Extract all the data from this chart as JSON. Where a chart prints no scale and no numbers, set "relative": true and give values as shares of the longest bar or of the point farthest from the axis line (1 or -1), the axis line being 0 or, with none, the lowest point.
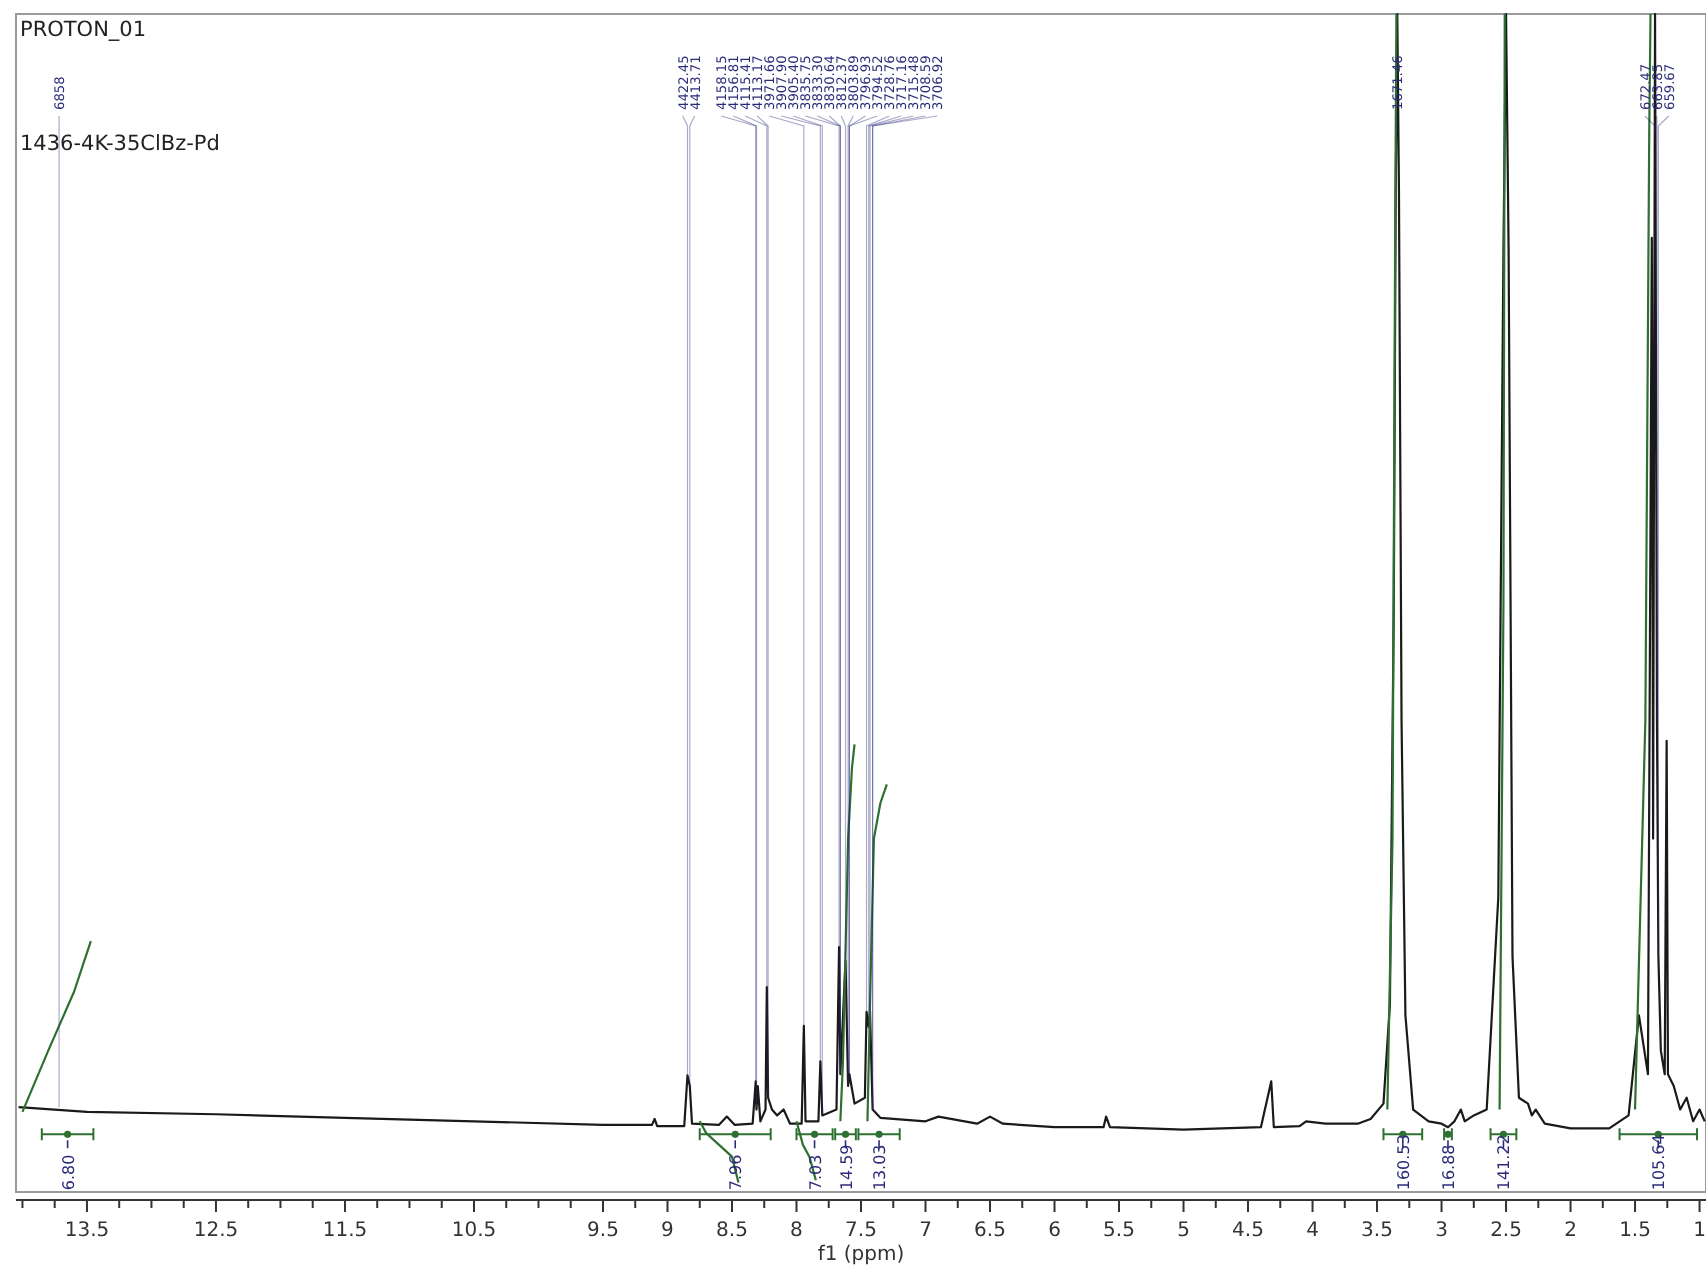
{
  "chart_data": {
    "type": "line",
    "title": "PROTON_01",
    "subtitle": "1436-4K-35ClBz-Pd",
    "xlabel": "f1 (ppm)",
    "relative": true,
    "legend": false,
    "grid": false,
    "xlim": [
      14.05,
      0.95
    ],
    "xticks": [
      {
        "value": 14.0,
        "label": null
      },
      {
        "value": 13.75,
        "label": null
      },
      13.5,
      {
        "value": 13.25,
        "label": null
      },
      {
        "value": 13.0,
        "label": null
      },
      {
        "value": 12.75,
        "label": null
      },
      12.5,
      {
        "value": 12.25,
        "label": null
      },
      {
        "value": 12.0,
        "label": null
      },
      {
        "value": 11.75,
        "label": null
      },
      11.5,
      {
        "value": 11.25,
        "label": null
      },
      {
        "value": 11.0,
        "label": null
      },
      {
        "value": 10.75,
        "label": null
      },
      10.5,
      {
        "value": 10.25,
        "label": null
      },
      {
        "value": 10.0,
        "label": null
      },
      {
        "value": 9.75,
        "label": null
      },
      9.5,
      {
        "value": 9.25,
        "label": null
      },
      9.0,
      {
        "value": 8.75,
        "label": null
      },
      8.5,
      {
        "value": 8.25,
        "label": null
      },
      8.0,
      {
        "value": 7.75,
        "label": null
      },
      7.5,
      {
        "value": 7.25,
        "label": null
      },
      7.0,
      {
        "value": 6.75,
        "label": null
      },
      6.5,
      {
        "value": 6.25,
        "label": null
      },
      6.0,
      {
        "value": 5.75,
        "label": null
      },
      5.5,
      {
        "value": 5.25,
        "label": null
      },
      5.0,
      {
        "value": 4.75,
        "label": null
      },
      4.5,
      {
        "value": 4.25,
        "label": null
      },
      4.0,
      {
        "value": 3.75,
        "label": null
      },
      3.5,
      {
        "value": 3.25,
        "label": null
      },
      3.0,
      {
        "value": 2.75,
        "label": null
      },
      2.5,
      {
        "value": 2.25,
        "label": null
      },
      2.0,
      {
        "value": 1.75,
        "label": null
      },
      1.5,
      {
        "value": 1.25,
        "label": null
      },
      1.0
    ],
    "series": [
      {
        "color": "#1a1a1a",
        "x": [
          14.03,
          13.5,
          12.5,
          11.5,
          10.5,
          9.5,
          9.12,
          9.1,
          9.08,
          8.87,
          8.845,
          8.827,
          8.81,
          8.6,
          8.54,
          8.48,
          8.34,
          8.316,
          8.31,
          8.3,
          8.28,
          8.24,
          8.23,
          8.22,
          8.19,
          8.15,
          8.1,
          8.05,
          7.96,
          7.943,
          7.93,
          7.83,
          7.815,
          7.8,
          7.69,
          7.67,
          7.66,
          7.62,
          7.6,
          7.59,
          7.55,
          7.47,
          7.457,
          7.44,
          7.43,
          7.41,
          7.35,
          7.0,
          6.9,
          6.6,
          6.5,
          6.4,
          6.0,
          5.62,
          5.6,
          5.57,
          5.0,
          4.4,
          4.32,
          4.3,
          4.1,
          4.05,
          3.9,
          3.65,
          3.55,
          3.45,
          3.4,
          3.37,
          3.355,
          3.343,
          3.33,
          3.31,
          3.28,
          3.22,
          3.1,
          3.0,
          2.95,
          2.9,
          2.85,
          2.82,
          2.75,
          2.65,
          2.56,
          2.52,
          2.5,
          2.48,
          2.45,
          2.4,
          2.33,
          2.3,
          2.27,
          2.2,
          2.0,
          1.7,
          1.55,
          1.47,
          1.4,
          1.37,
          1.36,
          1.345,
          1.33,
          1.319,
          1.3,
          1.27,
          1.255,
          1.245,
          1.2,
          1.15,
          1.1,
          1.05,
          1.0,
          0.96
        ],
        "values": [
          0.072,
          0.068,
          0.066,
          0.063,
          0.06,
          0.057,
          0.057,
          0.062,
          0.056,
          0.056,
          0.099,
          0.09,
          0.058,
          0.057,
          0.064,
          0.057,
          0.058,
          0.094,
          0.07,
          0.09,
          0.06,
          0.07,
          0.174,
          0.08,
          0.07,
          0.065,
          0.07,
          0.058,
          0.058,
          0.141,
          0.06,
          0.06,
          0.111,
          0.065,
          0.07,
          0.208,
          0.1,
          0.196,
          0.09,
          0.1,
          0.075,
          0.08,
          0.153,
          0.14,
          0.153,
          0.07,
          0.063,
          0.06,
          0.064,
          0.058,
          0.064,
          0.058,
          0.055,
          0.055,
          0.064,
          0.055,
          0.053,
          0.055,
          0.094,
          0.055,
          0.056,
          0.06,
          0.058,
          0.058,
          0.062,
          0.075,
          0.16,
          0.5,
          0.85,
          1,
          0.85,
          0.4,
          0.15,
          0.07,
          0.06,
          0.058,
          0.055,
          0.06,
          0.07,
          0.06,
          0.065,
          0.07,
          0.25,
          0.8,
          1,
          0.8,
          0.2,
          0.08,
          0.075,
          0.065,
          0.07,
          0.058,
          0.054,
          0.054,
          0.065,
          0.15,
          0.1,
          0.81,
          0.3,
          1,
          0.4,
          0.2,
          0.12,
          0.1,
          0.383,
          0.1,
          0.09,
          0.07,
          0.08,
          0.06,
          0.07,
          0.06
        ]
      },
      {
        "color": "#2e7031",
        "x": [
          14.0,
          13.8,
          13.6,
          13.47
        ],
        "values": [
          0.068,
          0.12,
          0.17,
          0.213
        ]
      },
      {
        "color": "#2e7031",
        "x": [
          8.75,
          8.7,
          8.6,
          8.5,
          8.45
        ],
        "values": [
          0.06,
          0.05,
          0.04,
          0.03,
          0.008
        ]
      },
      {
        "color": "#2e7031",
        "x": [
          8.0,
          7.95,
          7.9,
          7.85
        ],
        "values": [
          0.06,
          0.04,
          0.03,
          0.01
        ]
      },
      {
        "color": "#2e7031",
        "x": [
          7.66,
          7.64,
          7.6,
          7.57,
          7.55
        ],
        "values": [
          0.06,
          0.11,
          0.3,
          0.36,
          0.38
        ]
      },
      {
        "color": "#2e7031",
        "x": [
          7.45,
          7.43,
          7.4,
          7.35,
          7.3
        ],
        "values": [
          0.06,
          0.16,
          0.3,
          0.33,
          0.346
        ]
      },
      {
        "color": "#2e7031",
        "x": [
          3.42,
          3.38,
          3.36,
          3.35
        ],
        "values": [
          0.07,
          0.3,
          0.8,
          1
        ]
      },
      {
        "color": "#2e7031",
        "x": [
          2.55,
          2.52,
          2.51
        ],
        "values": [
          0.07,
          0.5,
          1
        ]
      },
      {
        "color": "#2e7031",
        "x": [
          1.5,
          1.42,
          1.39,
          1.38
        ],
        "values": [
          0.07,
          0.4,
          0.9,
          1
        ]
      },
      {
        "type": "scatter",
        "marker": "circle",
        "color": "#2e7031",
        "x": [
          13.65,
          8.475,
          7.86,
          7.62,
          7.36,
          3.3,
          2.95,
          2.52,
          1.32
        ],
        "values": [
          0.049,
          0.049,
          0.049,
          0.049,
          0.049,
          0.049,
          0.049,
          0.049,
          0.049
        ],
        "xerrors": [
          [
            13.45,
            13.85
          ],
          [
            8.2,
            8.75
          ],
          [
            7.72,
            8.0
          ],
          [
            7.54,
            7.7
          ],
          [
            7.2,
            7.52
          ],
          [
            3.15,
            3.45
          ],
          [
            2.92,
            2.98
          ],
          [
            2.42,
            2.62
          ],
          [
            1.02,
            1.62
          ]
        ]
      }
    ],
    "annotations": [
      {
        "text": "6858",
        "x": 13.716,
        "y": 0.072
      },
      {
        "text": "4422.45",
        "x": 8.845,
        "y": 0.099
      },
      {
        "text": "4413.71",
        "x": 8.827,
        "y": 0.09
      },
      {
        "text": "4158.15",
        "x": 8.316,
        "y": 0.094
      },
      {
        "text": "4156.81",
        "x": 8.31,
        "y": 0.07
      },
      {
        "text": "4115.41",
        "x": 8.23,
        "y": 0.174
      },
      {
        "text": "4113.17",
        "x": 8.22,
        "y": 0.08
      },
      {
        "text": "3971.66",
        "x": 7.943,
        "y": 0.141
      },
      {
        "text": "3907.90",
        "x": 7.815,
        "y": 0.111
      },
      {
        "text": "3905.40",
        "x": 7.8,
        "y": 0.065
      },
      {
        "text": "3835.75",
        "x": 7.67,
        "y": 0.208
      },
      {
        "text": "3833.30",
        "x": 7.66,
        "y": 0.1
      },
      {
        "text": "3830.64",
        "x": 7.66,
        "y": 0.1
      },
      {
        "text": "3812.37",
        "x": 7.62,
        "y": 0.196
      },
      {
        "text": "3803.89",
        "x": 7.6,
        "y": 0.09
      },
      {
        "text": "3796.93",
        "x": 7.59,
        "y": 0.1
      },
      {
        "text": "3794.52",
        "x": 7.59,
        "y": 0.1
      },
      {
        "text": "3728.76",
        "x": 7.457,
        "y": 0.153
      },
      {
        "text": "3717.16",
        "x": 7.44,
        "y": 0.14
      },
      {
        "text": "3715.48",
        "x": 7.43,
        "y": 0.153
      },
      {
        "text": "3708.59",
        "x": 7.41,
        "y": 0.07
      },
      {
        "text": "3706.92",
        "x": 7.41,
        "y": 0.07
      },
      {
        "text": "1671.46",
        "x": 3.343,
        "y": 0.9
      },
      {
        "text": "672.47",
        "x": 1.345,
        "y": 0.9
      },
      {
        "text": "663.85",
        "x": 1.33,
        "y": 0.4
      },
      {
        "text": "659.67",
        "x": 1.319,
        "y": 0.2
      },
      {
        "text": "6.80",
        "x": 13.65,
        "y": 0.049
      },
      {
        "text": "7.96",
        "x": 8.475,
        "y": 0.049
      },
      {
        "text": "7.03",
        "x": 7.86,
        "y": 0.049
      },
      {
        "text": "14.59",
        "x": 7.62,
        "y": 0.049
      },
      {
        "text": "13.03",
        "x": 7.36,
        "y": 0.049
      },
      {
        "text": "160.53",
        "x": 3.3,
        "y": 0.049
      },
      {
        "text": "16.88",
        "x": 2.95,
        "y": 0.049
      },
      {
        "text": "141.22",
        "x": 2.52,
        "y": 0.049
      },
      {
        "text": "105.64",
        "x": 1.32,
        "y": 0.049
      }
    ],
    "marker": "none"
  }
}
